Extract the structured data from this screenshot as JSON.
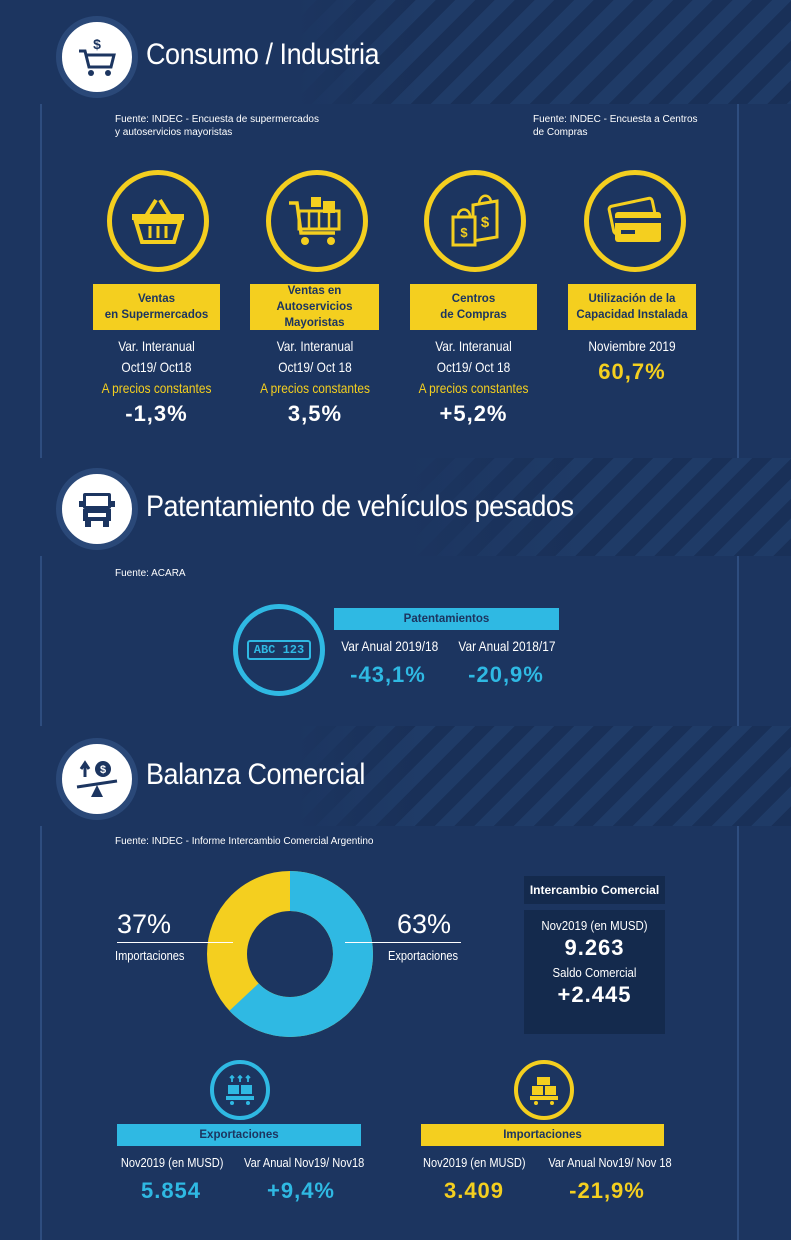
{
  "colors": {
    "background": "#1c3560",
    "yellow": "#f4cf1f",
    "cyan": "#2fb9e3",
    "white": "#ffffff"
  },
  "consumo": {
    "title": "Consumo / Industria",
    "icon": "shopping-cart-dollar-icon",
    "source_left": [
      "Fuente: INDEC - Encuesta de supermercados",
      "y autoservicios mayoristas"
    ],
    "source_right": [
      "Fuente: INDEC - Encuesta a Centros",
      "de Compras"
    ],
    "cards": [
      {
        "icon": "basket-icon",
        "label": [
          "Ventas",
          "en Supermercados"
        ],
        "line1": "Var. Interanual",
        "line2": "Oct19/ Oct18",
        "line3": "A precios constantes",
        "value": "-1,3%"
      },
      {
        "icon": "cart-icon",
        "label": [
          "Ventas en",
          "Autoservicios Mayoristas"
        ],
        "line1": "Var. Interanual",
        "line2": "Oct19/ Oct 18",
        "line3": "A precios constantes",
        "value": "3,5%"
      },
      {
        "icon": "shopping-bags-icon",
        "label": [
          "Centros",
          "de Compras"
        ],
        "line1": "Var. Interanual",
        "line2": "Oct19/ Oct 18",
        "line3": "A precios constantes",
        "value": "+5,2%"
      },
      {
        "icon": "credit-cards-icon",
        "label": [
          "Utilización de la",
          "Capacidad Instalada"
        ],
        "line1": "Noviembre 2019",
        "line2": "",
        "line3": "",
        "value": "60,7%"
      }
    ]
  },
  "patentamiento": {
    "title": "Patentamiento de vehículos pesados",
    "icon": "truck-icon",
    "source": "Fuente: ACARA",
    "plate_text": "ABC 123",
    "bar_label": "Patentamientos",
    "col1_label": "Var Anual 2019/18",
    "col1_value": "-43,1%",
    "col2_label": "Var Anual 2018/17",
    "col2_value": "-20,9%"
  },
  "balanza": {
    "title": "Balanza Comercial",
    "icon": "balance-scale-icon",
    "source": "Fuente: INDEC - Informe  Intercambio Comercial Argentino",
    "donut": {
      "import_pct": "37%",
      "import_label": "Importaciones",
      "export_pct": "63%",
      "export_label": "Exportaciones",
      "import_share": 37,
      "export_share": 63
    },
    "intercambio": {
      "header": "Intercambio Comercial",
      "label1": "Nov2019 (en MUSD)",
      "value1": "9.263",
      "label2": "Saldo Comercial",
      "value2": "+2.445"
    },
    "exportaciones": {
      "icon": "export-boxes-icon",
      "bar_label": "Exportaciones",
      "col1_label": "Nov2019 (en MUSD)",
      "col1_value": "5.854",
      "col2_label": "Var Anual Nov19/ Nov18",
      "col2_value": "+9,4%"
    },
    "importaciones": {
      "icon": "import-boxes-icon",
      "bar_label": "Importaciones",
      "col1_label": "Nov2019 (en MUSD)",
      "col1_value": "3.409",
      "col2_label": "Var Anual Nov19/ Nov 18",
      "col2_value": "-21,9%"
    }
  }
}
